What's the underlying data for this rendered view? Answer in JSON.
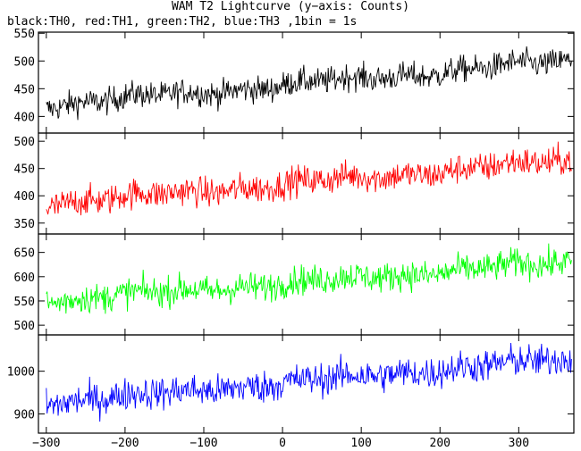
{
  "title": "WAM T2 Lightcurve (y−axis: Counts)",
  "subtitle": "black:TH0, red:TH1, green:TH2, blue:TH3 ,1bin = 1s",
  "chart_data": [
    {
      "type": "line",
      "series": [
        {
          "name": "TH0",
          "color": "#000000"
        }
      ],
      "xlim": [
        -310,
        370
      ],
      "ylim": [
        370,
        552
      ],
      "yticks": [
        400,
        450,
        500,
        550
      ],
      "trend": {
        "start": 420,
        "end": 500
      },
      "noise": 22
    },
    {
      "type": "line",
      "series": [
        {
          "name": "TH1",
          "color": "#ff0000"
        }
      ],
      "xlim": [
        -310,
        370
      ],
      "ylim": [
        330,
        515
      ],
      "yticks": [
        350,
        400,
        450,
        500
      ],
      "trend": {
        "start": 385,
        "end": 465
      },
      "noise": 25
    },
    {
      "type": "line",
      "series": [
        {
          "name": "TH2",
          "color": "#00ff00"
        }
      ],
      "xlim": [
        -310,
        370
      ],
      "ylim": [
        480,
        688
      ],
      "yticks": [
        500,
        550,
        600,
        650
      ],
      "trend": {
        "start": 550,
        "end": 630
      },
      "noise": 28
    },
    {
      "type": "line",
      "series": [
        {
          "name": "TH3",
          "color": "#0000ff"
        }
      ],
      "xlim": [
        -310,
        370
      ],
      "ylim": [
        855,
        1085
      ],
      "yticks": [
        900,
        1000
      ],
      "trend": {
        "start": 925,
        "end": 1030
      },
      "noise": 35
    }
  ],
  "xticks": [
    -300,
    -200,
    -100,
    0,
    100,
    200,
    300
  ]
}
